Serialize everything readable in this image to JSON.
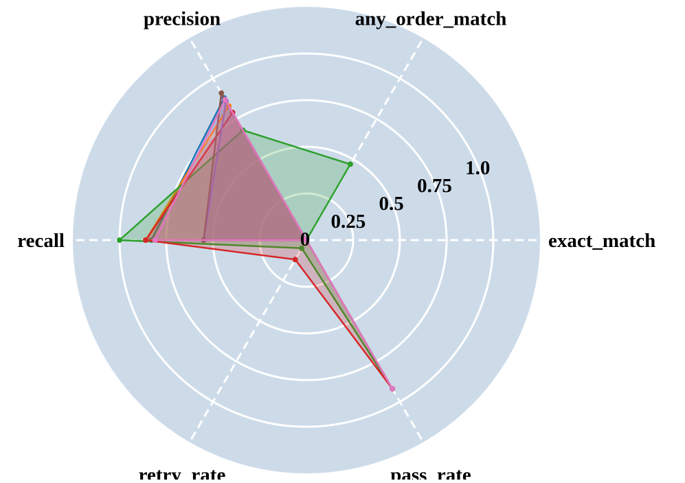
{
  "chart_data": {
    "type": "radar",
    "axes": [
      "exact_match",
      "any_order_match",
      "precision",
      "recall",
      "retry_rate",
      "pass_rate"
    ],
    "rticks": [
      0,
      0.25,
      0.5,
      0.75,
      1.0
    ],
    "rtick_labels": [
      "0",
      "0.25",
      "0.5",
      "0.75",
      "1.0"
    ],
    "rlim": [
      0,
      1.0
    ],
    "grid": true,
    "background_color": "#cddbe9",
    "grid_color": "#ffffff",
    "series": [
      {
        "color": "#1f77b4",
        "values": [
          0.0,
          0.0,
          0.88,
          0.83,
          0.0,
          0.92
        ]
      },
      {
        "color": "#ff7f0e",
        "values": [
          0.0,
          0.0,
          0.83,
          0.86,
          0.0,
          0.92
        ]
      },
      {
        "color": "#2ca02c",
        "values": [
          0.0,
          0.47,
          0.68,
          1.0,
          0.05,
          0.92
        ]
      },
      {
        "color": "#d62728",
        "values": [
          0.0,
          0.0,
          0.79,
          0.86,
          0.12,
          0.92
        ]
      },
      {
        "color": "#9467bd",
        "values": [
          0.0,
          0.0,
          0.86,
          0.55,
          0.0,
          0.92
        ]
      },
      {
        "color": "#8c564b",
        "values": [
          0.0,
          0.0,
          0.91,
          0.55,
          0.0,
          0.92
        ]
      },
      {
        "color": "#e377c2",
        "values": [
          0.0,
          0.0,
          0.87,
          0.81,
          0.0,
          0.92
        ]
      }
    ]
  }
}
